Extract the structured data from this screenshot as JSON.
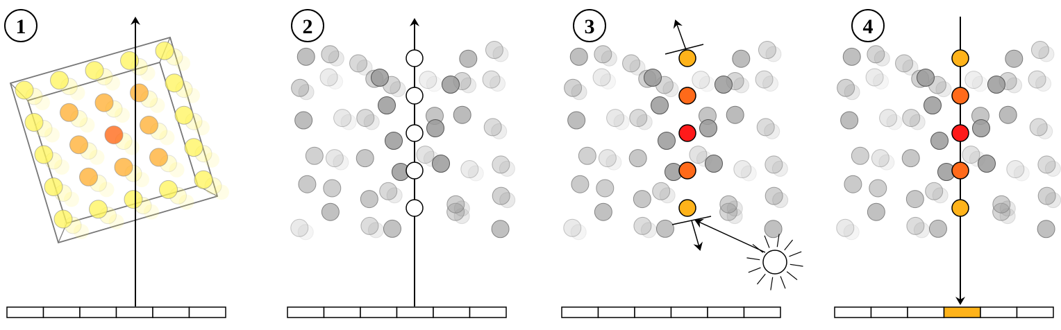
{
  "steps": [
    {
      "number": "1"
    },
    {
      "number": "2"
    },
    {
      "number": "3"
    },
    {
      "number": "4"
    }
  ],
  "colors": {
    "yellow": "#fff45a",
    "orange_light": "#ffb23a",
    "orange": "#ff6a1a",
    "red": "#ff1a1a",
    "gold": "#ffb31a",
    "gray": "#9a9a9a",
    "line": "#000000",
    "pixel_highlight": "#ffb31a"
  }
}
